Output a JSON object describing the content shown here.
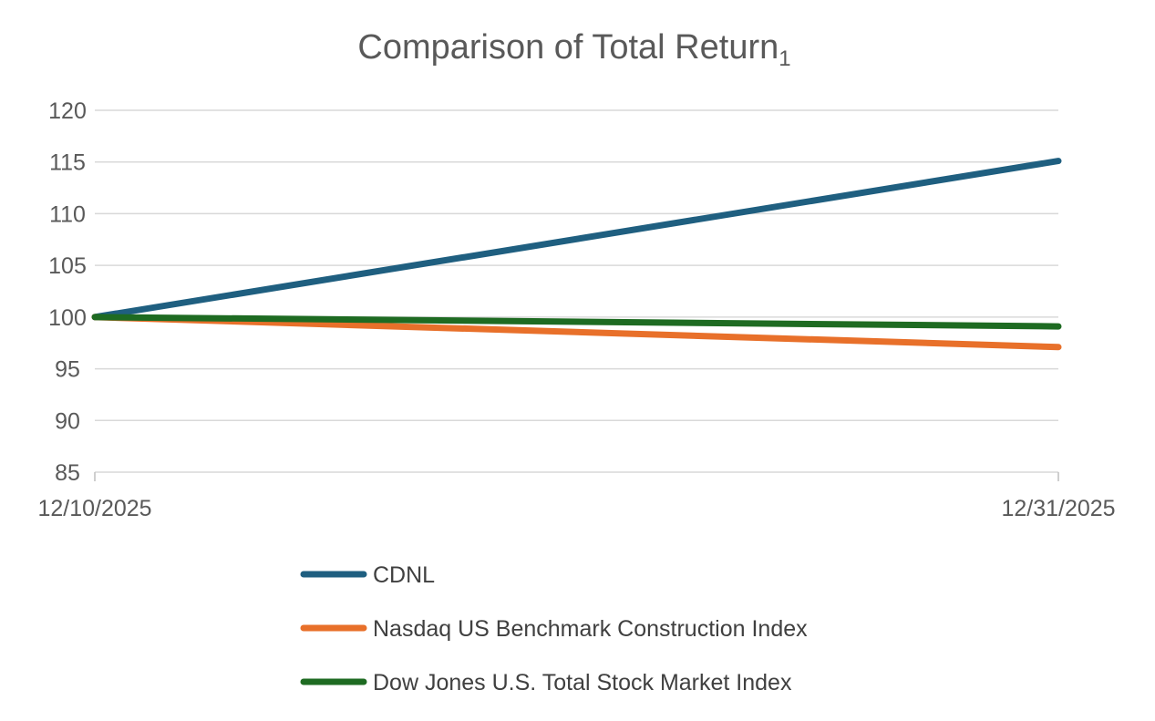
{
  "chart_data": {
    "type": "line",
    "title": "Comparison of Total Return",
    "title_subscript": "1",
    "x": [
      "12/10/2025",
      "12/31/2025"
    ],
    "series": [
      {
        "name": "CDNL",
        "values": [
          100,
          115.1
        ],
        "color": "#1f5f80"
      },
      {
        "name": "Nasdaq US Benchmark Construction Index",
        "values": [
          100,
          97.1
        ],
        "color": "#e8702a"
      },
      {
        "name": "Dow Jones U.S. Total Stock Market Index",
        "values": [
          100,
          99.1
        ],
        "color": "#1e6b22"
      }
    ],
    "yticks": [
      "85",
      "90",
      "95",
      "100",
      "105",
      "110",
      "115",
      "120"
    ],
    "ylim": [
      85,
      120
    ],
    "grid": true,
    "legend_position": "bottom"
  }
}
